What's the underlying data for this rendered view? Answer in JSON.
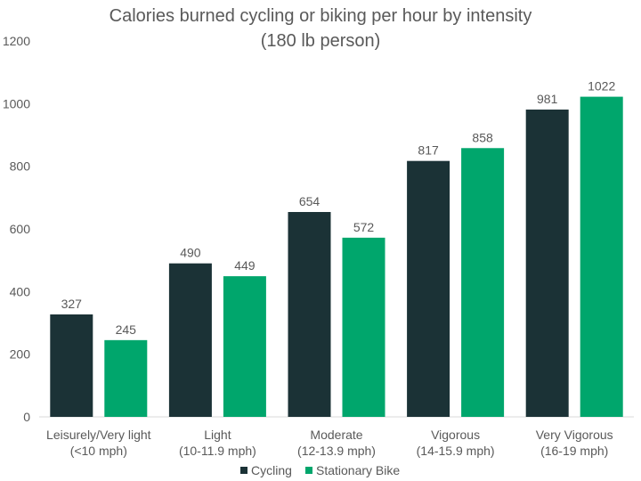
{
  "chart_data": {
    "type": "bar",
    "title": "Calories burned cycling or biking per hour by intensity",
    "subtitle": "(180 lb person)",
    "xlabel": "",
    "ylabel": "",
    "ylim": [
      0,
      1200
    ],
    "yticks": [
      0,
      200,
      400,
      600,
      800,
      1000,
      1200
    ],
    "grid": false,
    "legend_position": "bottom",
    "categories": [
      [
        "Leisurely/Very light",
        "(<10 mph)"
      ],
      [
        "Light",
        "(10-11.9 mph)"
      ],
      [
        "Moderate",
        "(12-13.9 mph)"
      ],
      [
        "Vigorous",
        "(14-15.9 mph)"
      ],
      [
        "Very Vigorous",
        "(16-19 mph)"
      ]
    ],
    "series": [
      {
        "name": "Cycling",
        "color": "#1b3236",
        "values": [
          327,
          490,
          654,
          817,
          981
        ]
      },
      {
        "name": "Stationary Bike",
        "color": "#00a66c",
        "values": [
          245,
          449,
          572,
          858,
          1022
        ]
      }
    ]
  }
}
